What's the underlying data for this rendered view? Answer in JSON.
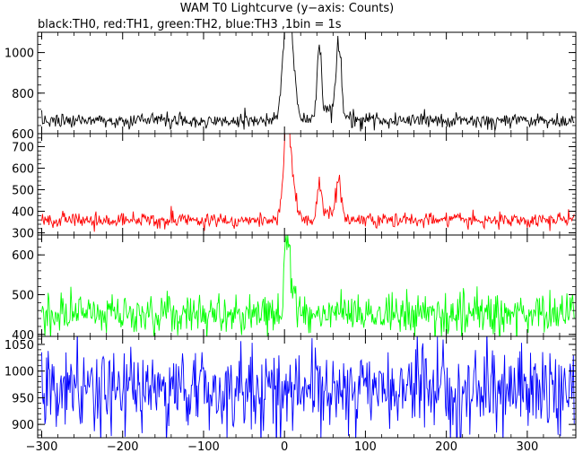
{
  "chart_data": {
    "type": "line",
    "title": "WAM T0 Lightcurve (y−axis: Counts)",
    "subtitle": "black:TH0, red:TH1, green:TH2, blue:TH3 ,1bin = 1s",
    "xlim": [
      -305,
      360
    ],
    "x_ticks": [
      -300,
      -200,
      -100,
      0,
      100,
      200,
      300
    ],
    "x_tick_labels": [
      "−300",
      "−200",
      "−100",
      "0",
      "100",
      "200",
      "300"
    ],
    "grid": false,
    "panels": [
      {
        "name": "TH0",
        "color": "#000000",
        "ylim": [
          600,
          1100
        ],
        "y_ticks": [
          600,
          800,
          1000
        ],
        "baseline": 665,
        "noise": 18,
        "peaks": [
          {
            "x": 3,
            "height": 430,
            "width": 5
          },
          {
            "x": 8,
            "height": 230,
            "width": 6
          },
          {
            "x": 43,
            "height": 360,
            "width": 2.5
          },
          {
            "x": 67,
            "height": 380,
            "width": 3
          },
          {
            "x": 55,
            "height": 60,
            "width": 10
          }
        ]
      },
      {
        "name": "TH1",
        "color": "#ff0000",
        "ylim": [
          290,
          760
        ],
        "y_ticks": [
          300,
          400,
          500,
          600,
          700
        ],
        "baseline": 360,
        "noise": 17,
        "peaks": [
          {
            "x": 3,
            "height": 390,
            "width": 4
          },
          {
            "x": 8,
            "height": 170,
            "width": 6
          },
          {
            "x": 43,
            "height": 150,
            "width": 2.5
          },
          {
            "x": 67,
            "height": 160,
            "width": 3
          },
          {
            "x": 55,
            "height": 35,
            "width": 10
          }
        ]
      },
      {
        "name": "TH2",
        "color": "#00ff00",
        "ylim": [
          395,
          650
        ],
        "y_ticks": [
          400,
          500,
          600
        ],
        "baseline": 450,
        "noise": 25,
        "peaks": [
          {
            "x": 3,
            "height": 190,
            "width": 3
          },
          {
            "x": 8,
            "height": 60,
            "width": 5
          }
        ]
      },
      {
        "name": "TH3",
        "color": "#0000ff",
        "ylim": [
          875,
          1065
        ],
        "y_ticks": [
          900,
          950,
          1000,
          1050
        ],
        "baseline": 965,
        "noise": 38,
        "peaks": []
      }
    ]
  }
}
